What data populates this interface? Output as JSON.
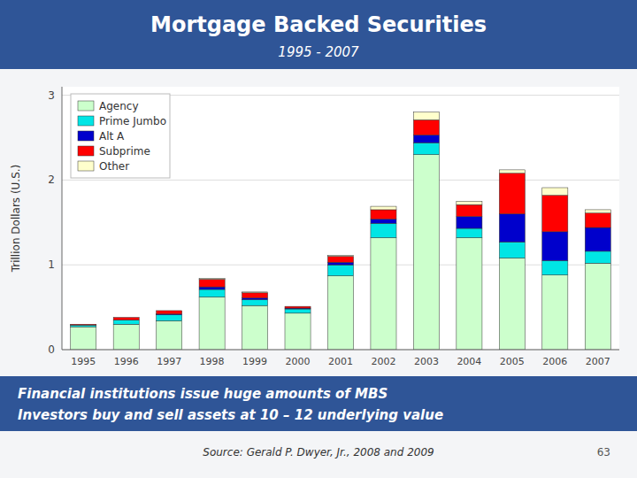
{
  "chart_data": {
    "type": "bar",
    "stacked": true,
    "title": "Mortgage Backed Securities",
    "subtitle": "1995 - 2007",
    "ylabel": "Trillion Dollars (U.S.)",
    "categories": [
      "1995",
      "1996",
      "1997",
      "1998",
      "1999",
      "2000",
      "2001",
      "2002",
      "2003",
      "2004",
      "2005",
      "2006",
      "2007"
    ],
    "series": [
      {
        "name": "Agency",
        "color": "#ccffcc",
        "values": [
          0.27,
          0.3,
          0.34,
          0.62,
          0.52,
          0.43,
          0.87,
          1.32,
          2.3,
          1.32,
          1.08,
          0.88,
          1.02
        ]
      },
      {
        "name": "Prime Jumbo",
        "color": "#00e5e5",
        "values": [
          0.02,
          0.05,
          0.07,
          0.09,
          0.07,
          0.05,
          0.13,
          0.17,
          0.14,
          0.11,
          0.19,
          0.17,
          0.14
        ]
      },
      {
        "name": "Alt A",
        "color": "#0000cc",
        "values": [
          0.0,
          0.0,
          0.01,
          0.03,
          0.02,
          0.01,
          0.03,
          0.05,
          0.09,
          0.14,
          0.33,
          0.34,
          0.28
        ]
      },
      {
        "name": "Subprime",
        "color": "#ff0000",
        "values": [
          0.01,
          0.03,
          0.04,
          0.09,
          0.06,
          0.02,
          0.07,
          0.11,
          0.18,
          0.14,
          0.48,
          0.43,
          0.17
        ]
      },
      {
        "name": "Other",
        "color": "#ffffcc",
        "values": [
          0.0,
          0.0,
          0.0,
          0.01,
          0.01,
          0.0,
          0.01,
          0.04,
          0.09,
          0.04,
          0.04,
          0.09,
          0.04
        ]
      }
    ],
    "ylim": [
      0,
      3.1
    ],
    "yticks": [
      0,
      1,
      2,
      3
    ],
    "grid": true,
    "legend": "upper left",
    "annotations": [
      "Financial institutions issue huge amounts of MBS",
      "Investors buy and sell assets at 10 – 12 underlying value",
      "Source: Gerald P. Dwyer, Jr., 2008 and 2009",
      "63"
    ]
  }
}
